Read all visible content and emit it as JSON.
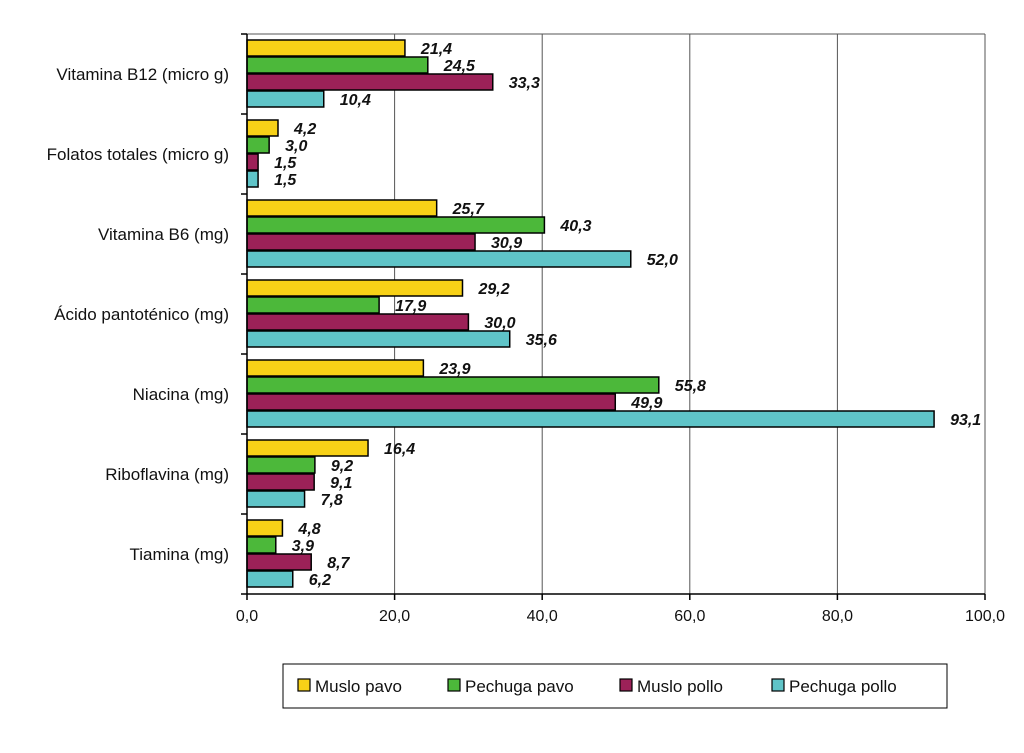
{
  "chart_data": {
    "type": "bar",
    "orientation": "horizontal",
    "categories": [
      "Vitamina B12  (micro g)",
      "Folatos totales (micro g)",
      "Vitamina B6 (mg)",
      "Ácido pantoténico (mg)",
      "Niacina  (mg)",
      "Riboflavina  (mg)",
      "Tiamina  (mg)"
    ],
    "series": [
      {
        "name": "Muslo pavo",
        "color": "#f7d117",
        "values": [
          21.4,
          4.2,
          25.7,
          29.2,
          23.9,
          16.4,
          4.8
        ],
        "labels": [
          "21,4",
          "4,2",
          "25,7",
          "29,2",
          "23,9",
          "16,4",
          "4,8"
        ]
      },
      {
        "name": "Pechuga pavo",
        "color": "#4cb83a",
        "values": [
          24.5,
          3.0,
          40.3,
          17.9,
          55.8,
          9.2,
          3.9
        ],
        "labels": [
          "24,5",
          "3,0",
          "40,3",
          "17,9",
          "55,8",
          "9,2",
          "3,9"
        ]
      },
      {
        "name": "Muslo pollo",
        "color": "#9c2158",
        "values": [
          33.3,
          1.5,
          30.9,
          30.0,
          49.9,
          9.1,
          8.7
        ],
        "labels": [
          "33,3",
          "1,5",
          "30,9",
          "30,0",
          "49,9",
          "9,1",
          "8,7"
        ]
      },
      {
        "name": "Pechuga pollo",
        "color": "#5fc4c8",
        "values": [
          10.4,
          1.5,
          52.0,
          35.6,
          93.1,
          7.8,
          6.2
        ],
        "labels": [
          "10,4",
          "1,5",
          "52,0",
          "35,6",
          "93,1",
          "7,8",
          "6,2"
        ]
      }
    ],
    "xlim": [
      0,
      100
    ],
    "xticks": [
      0,
      20,
      40,
      60,
      80,
      100
    ],
    "xtick_labels": [
      "0,0",
      "20,0",
      "40,0",
      "60,0",
      "80,0",
      "100,0"
    ],
    "grid": "vertical",
    "legend": "bottom"
  }
}
